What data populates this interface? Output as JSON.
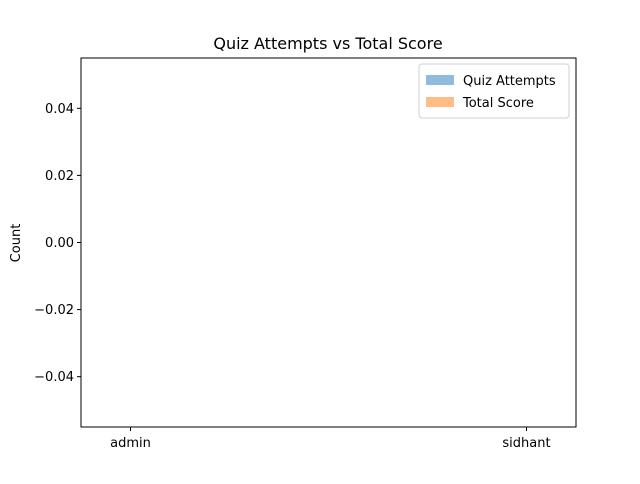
{
  "chart_data": {
    "type": "bar",
    "title": "Quiz Attempts vs Total Score",
    "xlabel": "",
    "ylabel": "Count",
    "categories": [
      "admin",
      "sidhant"
    ],
    "series": [
      {
        "name": "Quiz Attempts",
        "color": "#8fbcdc",
        "values": [
          0,
          0
        ]
      },
      {
        "name": "Total Score",
        "color": "#fdbd85",
        "values": [
          0,
          0
        ]
      }
    ],
    "ylim": [
      -0.055,
      0.055
    ],
    "yticks": [
      {
        "value": 0.04,
        "label": "0.04"
      },
      {
        "value": 0.02,
        "label": "0.02"
      },
      {
        "value": 0.0,
        "label": "0.00"
      },
      {
        "value": -0.02,
        "label": "−0.02"
      },
      {
        "value": -0.04,
        "label": "−0.04"
      }
    ],
    "grid": false,
    "legend_position": "top-right"
  }
}
